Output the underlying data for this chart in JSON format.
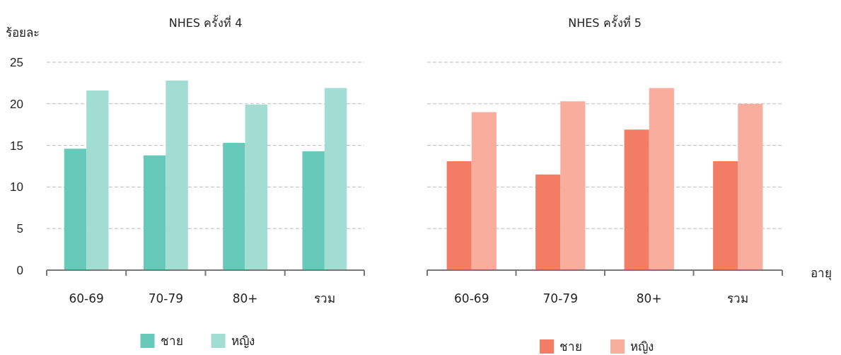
{
  "chart_data": [
    {
      "type": "bar",
      "title": "NHES ครั้งที่ 4",
      "ylabel": "ร้อยละ",
      "categories": [
        "60-69",
        "70-79",
        "80+",
        "รวม"
      ],
      "series": [
        {
          "name": "ชาย",
          "color": "#66c9b9",
          "values": [
            14.6,
            13.8,
            15.3,
            14.3
          ]
        },
        {
          "name": "หญิง",
          "color": "#a2ddd4",
          "values": [
            21.6,
            22.8,
            19.9,
            21.9
          ]
        }
      ],
      "ylim": [
        0,
        25
      ],
      "yticks": [
        0,
        5,
        10,
        15,
        20,
        25
      ],
      "grid": "y",
      "legend": "bottom"
    },
    {
      "type": "bar",
      "title": "NHES ครั้งที่ 5",
      "xlabel": "อายุ",
      "categories": [
        "60-69",
        "70-79",
        "80+",
        "รวม"
      ],
      "series": [
        {
          "name": "ชาย",
          "color": "#f37c65",
          "values": [
            13.1,
            11.5,
            16.9,
            13.1
          ]
        },
        {
          "name": "หญิง",
          "color": "#f8ad9d",
          "values": [
            19.0,
            20.3,
            21.9,
            20.0
          ]
        }
      ],
      "ylim": [
        0,
        25
      ],
      "yticks": [
        0,
        5,
        10,
        15,
        20,
        25
      ],
      "grid": "y",
      "legend": "bottom",
      "tick_labels": "x"
    }
  ]
}
